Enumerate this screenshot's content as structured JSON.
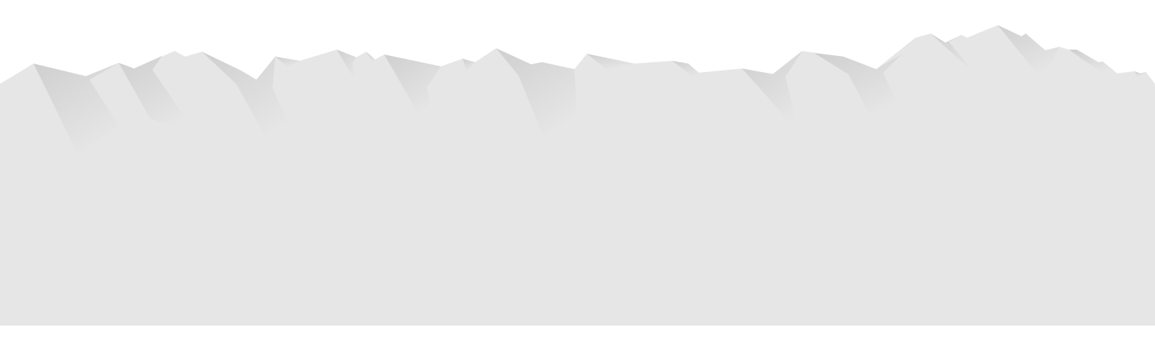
{
  "scene": {
    "name": "mountain-ridge-decoration",
    "colors": {
      "background": "#ffffff",
      "ground": "#e6e6e6",
      "shadow_dark": "#cfcfcf",
      "shadow_light": "#e6e6e6"
    }
  }
}
